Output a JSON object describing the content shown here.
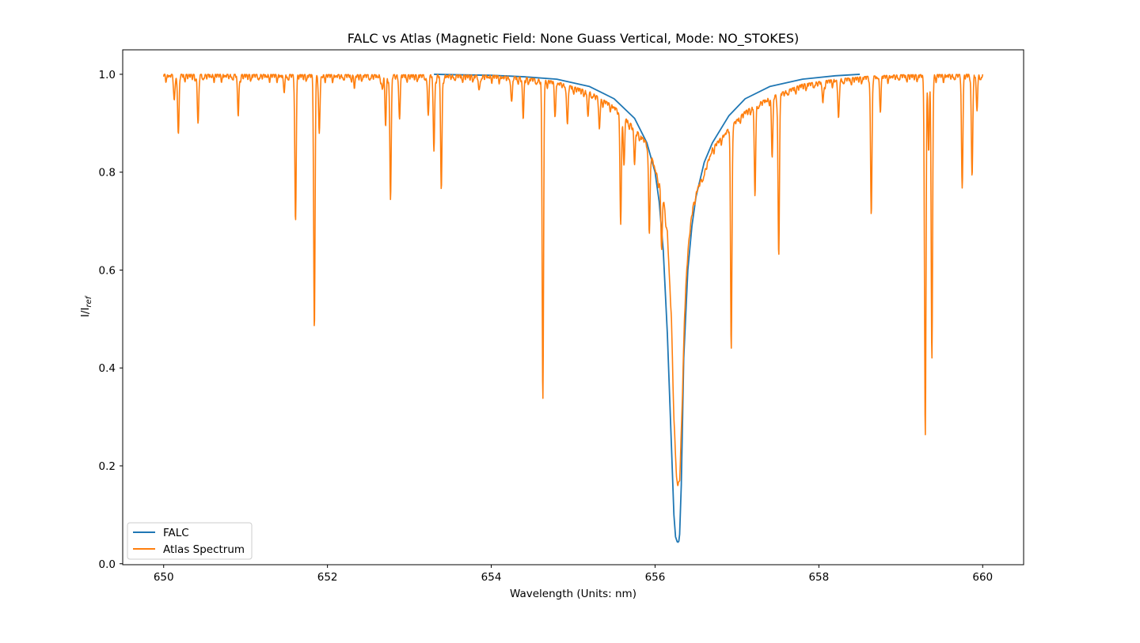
{
  "chart_data": {
    "type": "line",
    "title": "FALC vs Atlas (Magnetic Field: None Guass Vertical, Mode: NO_STOKES)",
    "xlabel": "Wavelength (Units: nm)",
    "ylabel_main": "I/I",
    "ylabel_sub": "ref",
    "xlim": [
      649.5,
      660.5
    ],
    "ylim": [
      -0.002,
      1.05
    ],
    "xticks": [
      650,
      652,
      654,
      656,
      658,
      660
    ],
    "yticks": [
      0.0,
      0.2,
      0.4,
      0.6,
      0.8,
      1.0
    ],
    "xtick_labels": [
      "650",
      "652",
      "654",
      "656",
      "658",
      "660"
    ],
    "ytick_labels": [
      "0.0",
      "0.2",
      "0.4",
      "0.6",
      "0.8",
      "1.0"
    ],
    "grid": false,
    "legend_position": "lower-left",
    "series": [
      {
        "name": "FALC",
        "color": "#1f77b4",
        "x": [
          653.3,
          653.6,
          654.0,
          654.4,
          654.8,
          655.2,
          655.5,
          655.75,
          655.9,
          656.0,
          656.05,
          656.1,
          656.15,
          656.2,
          656.23,
          656.25,
          656.27,
          656.28,
          656.29,
          656.3,
          656.32,
          656.35,
          656.4,
          656.45,
          656.5,
          656.6,
          656.7,
          656.9,
          657.1,
          657.4,
          657.8,
          658.2,
          658.5
        ],
        "y": [
          1.0,
          0.999,
          0.998,
          0.995,
          0.99,
          0.975,
          0.95,
          0.91,
          0.86,
          0.8,
          0.74,
          0.64,
          0.47,
          0.24,
          0.1,
          0.055,
          0.045,
          0.044,
          0.046,
          0.06,
          0.16,
          0.42,
          0.6,
          0.69,
          0.75,
          0.82,
          0.86,
          0.915,
          0.95,
          0.975,
          0.99,
          0.997,
          1.0
        ]
      },
      {
        "name": "Atlas Spectrum",
        "color": "#ff7f0e",
        "continuum": [
          [
            650.0,
            1.0
          ],
          [
            653.3,
            0.999
          ],
          [
            654.0,
            0.998
          ],
          [
            654.4,
            0.994
          ],
          [
            654.8,
            0.985
          ],
          [
            655.2,
            0.965
          ],
          [
            655.5,
            0.935
          ],
          [
            655.7,
            0.9
          ],
          [
            655.9,
            0.86
          ],
          [
            656.0,
            0.81
          ],
          [
            656.05,
            0.78
          ],
          [
            656.1,
            0.75
          ],
          [
            656.15,
            0.68
          ],
          [
            656.2,
            0.5
          ],
          [
            656.23,
            0.3
          ],
          [
            656.26,
            0.19
          ],
          [
            656.28,
            0.165
          ],
          [
            656.3,
            0.17
          ],
          [
            656.33,
            0.32
          ],
          [
            656.36,
            0.52
          ],
          [
            656.4,
            0.64
          ],
          [
            656.45,
            0.72
          ],
          [
            656.5,
            0.76
          ],
          [
            656.6,
            0.8
          ],
          [
            656.7,
            0.85
          ],
          [
            656.9,
            0.89
          ],
          [
            657.1,
            0.925
          ],
          [
            657.3,
            0.945
          ],
          [
            657.5,
            0.96
          ],
          [
            657.8,
            0.98
          ],
          [
            658.2,
            0.99
          ],
          [
            658.6,
            0.996
          ],
          [
            659.0,
            0.999
          ],
          [
            660.0,
            1.0
          ]
        ],
        "absorption_lines": [
          [
            650.13,
            0.05
          ],
          [
            650.18,
            0.12
          ],
          [
            650.42,
            0.1
          ],
          [
            650.91,
            0.08
          ],
          [
            651.47,
            0.03
          ],
          [
            651.61,
            0.29
          ],
          [
            651.84,
            0.51
          ],
          [
            651.9,
            0.12
          ],
          [
            652.33,
            0.02
          ],
          [
            652.67,
            0.03
          ],
          [
            652.71,
            0.1
          ],
          [
            652.77,
            0.25
          ],
          [
            652.88,
            0.08
          ],
          [
            653.23,
            0.08
          ],
          [
            653.3,
            0.15
          ],
          [
            653.39,
            0.23
          ],
          [
            653.85,
            0.03
          ],
          [
            654.25,
            0.05
          ],
          [
            654.39,
            0.08
          ],
          [
            654.63,
            0.65
          ],
          [
            654.78,
            0.06
          ],
          [
            654.93,
            0.08
          ],
          [
            655.18,
            0.05
          ],
          [
            655.32,
            0.06
          ],
          [
            655.58,
            0.22
          ],
          [
            655.62,
            0.1
          ],
          [
            655.75,
            0.07
          ],
          [
            655.93,
            0.17
          ],
          [
            656.08,
            0.12
          ],
          [
            656.93,
            0.45
          ],
          [
            657.22,
            0.18
          ],
          [
            657.43,
            0.12
          ],
          [
            657.51,
            0.33
          ],
          [
            658.05,
            0.04
          ],
          [
            658.24,
            0.08
          ],
          [
            658.64,
            0.28
          ],
          [
            658.75,
            0.06
          ],
          [
            659.29,
            0.09
          ],
          [
            659.34,
            0.15
          ],
          [
            659.3,
            0.68
          ],
          [
            659.38,
            0.58
          ],
          [
            659.75,
            0.22
          ],
          [
            659.87,
            0.2
          ],
          [
            659.93,
            0.07
          ]
        ]
      }
    ]
  }
}
